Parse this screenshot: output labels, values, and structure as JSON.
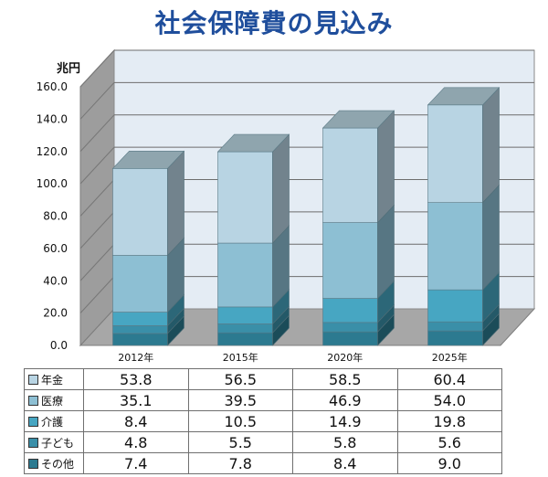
{
  "title": "社会保障費の見込み",
  "chart_data": {
    "type": "bar",
    "stacked": true,
    "title": "社会保障費の見込み",
    "ylabel": "兆円",
    "xlabel": "",
    "ylim": [
      0,
      160
    ],
    "yticks": [
      "0.0",
      "20.0",
      "40.0",
      "60.0",
      "80.0",
      "100.0",
      "120.0",
      "140.0",
      "160.0"
    ],
    "categories": [
      "2012年",
      "2015年",
      "2020年",
      "2025年"
    ],
    "series": [
      {
        "name": "年金",
        "values": [
          53.8,
          56.5,
          58.5,
          60.4
        ],
        "color": "#b8d4e3"
      },
      {
        "name": "医療",
        "values": [
          35.1,
          39.5,
          46.9,
          54.0
        ],
        "color": "#8dbfd3"
      },
      {
        "name": "介護",
        "values": [
          8.4,
          10.5,
          14.9,
          19.8
        ],
        "color": "#47a6c2"
      },
      {
        "name": "子ども",
        "values": [
          4.8,
          5.5,
          5.8,
          5.6
        ],
        "color": "#3a8fa8"
      },
      {
        "name": "その他",
        "values": [
          7.4,
          7.8,
          8.4,
          9.0
        ],
        "color": "#2c7a90"
      }
    ],
    "grid": true,
    "legend": "table-below"
  }
}
